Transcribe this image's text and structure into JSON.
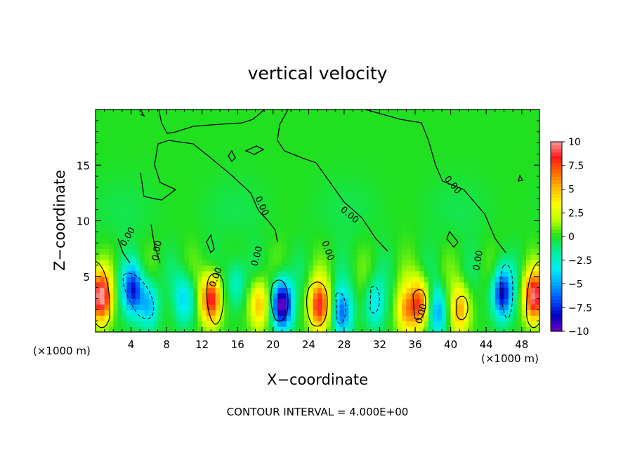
{
  "chart_data": {
    "type": "heatmap",
    "title": "vertical velocity",
    "xlabel": "X−coordinate",
    "ylabel": "Z−coordinate",
    "x_unit_left": "(×1000 m)",
    "x_unit_right": "(×1000 m)",
    "xlim": [
      0,
      50
    ],
    "ylim": [
      0,
      20
    ],
    "x_ticks": [
      "4",
      "8",
      "12",
      "16",
      "20",
      "24",
      "28",
      "32",
      "36",
      "40",
      "44",
      "48"
    ],
    "y_ticks": [
      "5",
      "10",
      "15"
    ],
    "x_tick_values": [
      4,
      8,
      12,
      16,
      20,
      24,
      28,
      32,
      36,
      40,
      44,
      48
    ],
    "y_tick_values": [
      5,
      10,
      15
    ],
    "colorbar": {
      "labels": [
        "10",
        "7.5",
        "5",
        "2.5",
        "0",
        "−2.5",
        "−5",
        "−7.5",
        "−10"
      ],
      "values": [
        10,
        7.5,
        5,
        2.5,
        0,
        -2.5,
        -5,
        -7.5,
        -10
      ],
      "range": [
        -10,
        10
      ],
      "colors": [
        "#ff9a9a",
        "#ff1a1a",
        "#ff7000",
        "#ffbe00",
        "#ffff00",
        "#b4ff00",
        "#20e020",
        "#00f0a0",
        "#00f0f0",
        "#00a8ff",
        "#0050ff",
        "#0000c0",
        "#7000c0"
      ]
    },
    "contour_label": "0.00",
    "contour_interval_text": "CONTOUR INTERVAL = 4.000E+00",
    "features": [
      {
        "x": 0.6,
        "z": 3.2,
        "w": 10.5
      },
      {
        "x": 4.2,
        "z": 3.8,
        "w": -7.5
      },
      {
        "x": 6.0,
        "z": 2.5,
        "w": -4.5
      },
      {
        "x": 10.0,
        "z": 3.0,
        "w": -4.0
      },
      {
        "x": 13.0,
        "z": 3.0,
        "w": 9.0
      },
      {
        "x": 15.8,
        "z": 4.5,
        "w": -3.0
      },
      {
        "x": 18.4,
        "z": 2.5,
        "w": 5.0
      },
      {
        "x": 21.0,
        "z": 2.5,
        "w": -10.5
      },
      {
        "x": 25.2,
        "z": 2.4,
        "w": 8.5
      },
      {
        "x": 27.8,
        "z": 1.8,
        "w": -6.0
      },
      {
        "x": 31.5,
        "z": 2.5,
        "w": -3.5
      },
      {
        "x": 35.0,
        "z": 2.0,
        "w": 5.0
      },
      {
        "x": 36.5,
        "z": 2.6,
        "w": 7.0
      },
      {
        "x": 38.5,
        "z": 1.8,
        "w": -5.0
      },
      {
        "x": 41.0,
        "z": 2.0,
        "w": 5.5
      },
      {
        "x": 45.8,
        "z": 3.5,
        "w": -8.5
      },
      {
        "x": 49.4,
        "z": 3.2,
        "w": 9.5
      }
    ]
  }
}
